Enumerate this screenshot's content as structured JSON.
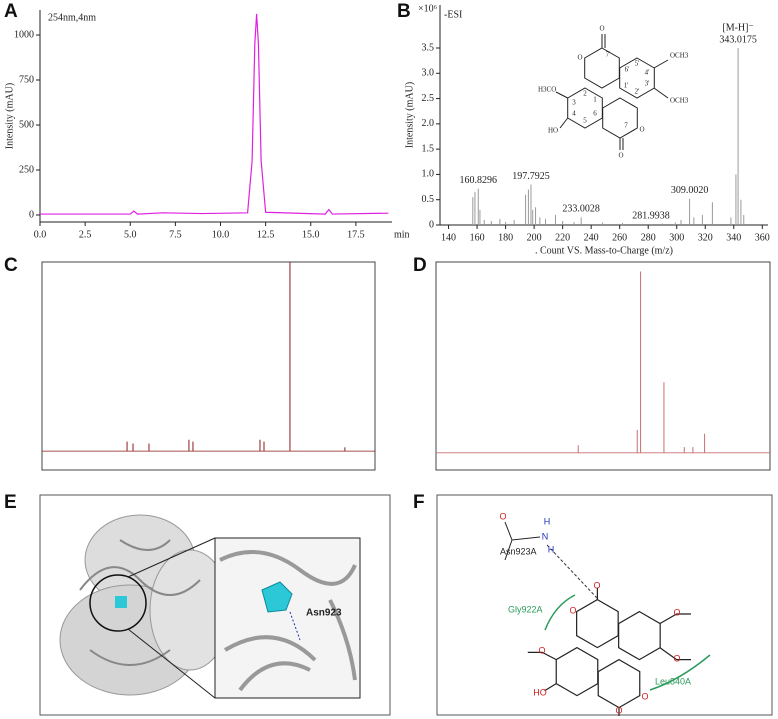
{
  "panels": [
    "A",
    "B",
    "C",
    "D",
    "E",
    "F"
  ],
  "chart_data": [
    {
      "type": "line",
      "title": "254nm,4nm",
      "y_label": "Intensity (mAU)",
      "x_unit": "min",
      "color": "#e020e0",
      "x": [
        0,
        2.5,
        5.0,
        5.2,
        5.4,
        6.8,
        9.0,
        11.5,
        11.75,
        11.9,
        12.0,
        12.1,
        12.25,
        12.5,
        15.8,
        16.0,
        16.2,
        19.3
      ],
      "values": [
        5,
        5,
        5,
        22,
        5,
        12,
        8,
        12,
        300,
        950,
        1117,
        950,
        300,
        15,
        5,
        30,
        5,
        10
      ],
      "xlim": [
        0,
        19.5
      ],
      "ylim": [
        -39,
        1139
      ],
      "xticks": [
        {
          "value": 0,
          "label": "0.0"
        },
        2.5,
        {
          "value": 5,
          "label": "5.0"
        },
        7.5,
        {
          "value": 10,
          "label": "10.0"
        },
        12.5,
        {
          "value": 15,
          "label": "15.0"
        },
        17.5
      ],
      "yticks": [
        0,
        250,
        500,
        750,
        1000
      ]
    },
    {
      "type": "stem",
      "annotation": "-ESI",
      "ion_label": "[M-H]⁻",
      "y_label": "Intensity (mAU)",
      "y_multiplier": "×10⁶",
      "x_label": ". Count VS. Mass-to-Charge (m/z)",
      "color": "#9a9a9a",
      "x": [
        157,
        158.5,
        162,
        165,
        170,
        176,
        180,
        186,
        194,
        196,
        199,
        201,
        204,
        208,
        215,
        220,
        228,
        248,
        262,
        290,
        299,
        303,
        312,
        318,
        325,
        338,
        341.5,
        345,
        347
      ],
      "values": [
        0.55,
        0.65,
        0.3,
        0.1,
        0.08,
        0.12,
        0.06,
        0.1,
        0.6,
        0.7,
        0.3,
        0.35,
        0.15,
        0.12,
        0.2,
        0.08,
        0.06,
        0.05,
        0.04,
        0.03,
        0.05,
        0.1,
        0.15,
        0.2,
        0.45,
        0.15,
        1.0,
        0.5,
        0.2
      ],
      "peaks": {
        "x": [
          160.8296,
          197.7925,
          233.0028,
          281.9938,
          309.002,
          343.0175
        ],
        "x_labels": [
          "160.8296",
          "197.7925",
          "233.0028",
          "281.9938",
          "309.0020",
          "343.0175"
        ],
        "values": [
          0.72,
          0.8,
          0.15,
          0.02,
          0.52,
          3.5
        ]
      },
      "xlim": [
        134,
        364
      ],
      "ylim": [
        0,
        4.35
      ],
      "xticks": [
        140,
        160,
        180,
        200,
        220,
        240,
        260,
        280,
        300,
        320,
        340,
        360
      ],
      "yticks": [
        0,
        0.5,
        {
          "value": 1,
          "label": "1.0"
        },
        1.5,
        {
          "value": 2,
          "label": "2.0"
        },
        2.5,
        {
          "value": 3,
          "label": "3.0"
        },
        3.5
      ],
      "structure_labels": [
        "O",
        "O",
        "7'",
        "6'",
        "5'",
        "4'",
        "3'",
        "2'",
        "1'",
        "OCH3",
        "OCH3",
        "H3CO",
        "HO",
        "1",
        "2",
        "3",
        "4",
        "5",
        "6",
        "7",
        "O",
        "O"
      ]
    },
    {
      "type": "stem",
      "color": "#8b1a1a",
      "xlim": [
        220,
        -20
      ],
      "ylim": [
        -0.1,
        1.0
      ],
      "x": [
        158.7,
        154.4,
        142.9,
        114.1,
        111.2,
        62.9,
        60.0,
        41.3,
        1.7
      ],
      "values": [
        0.05,
        0.04,
        0.04,
        0.06,
        0.05,
        0.06,
        0.05,
        1.0,
        0.02
      ]
    },
    {
      "type": "stem",
      "color": "#c87070",
      "xlim": [
        10.5,
        -1.5
      ],
      "ylim": [
        -0.09,
        1.0
      ],
      "x": [
        5.39,
        3.27,
        3.15,
        2.31,
        1.58,
        1.27,
        0.85
      ],
      "values": [
        0.04,
        0.12,
        0.95,
        0.37,
        0.03,
        0.03,
        0.1
      ]
    }
  ],
  "docking": {
    "residue_label": "Asn923"
  },
  "interaction": {
    "residues": [
      "Asn923A",
      "Gly922A",
      "Leu840A"
    ],
    "atoms": [
      "O",
      "N",
      "H",
      "H",
      "O",
      "O",
      "O",
      "O",
      "O",
      "HO",
      "O",
      "O"
    ]
  }
}
